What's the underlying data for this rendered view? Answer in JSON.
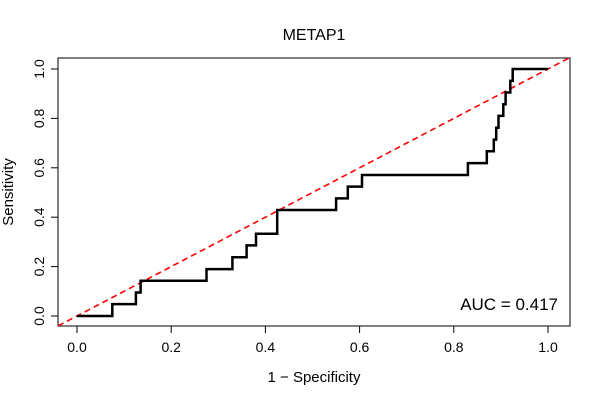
{
  "chart_data": {
    "type": "line",
    "title": "METAP1",
    "xlabel": "1 − Specificity",
    "ylabel": "Sensitivity",
    "xlim": [
      0,
      1
    ],
    "ylim": [
      0,
      1
    ],
    "x_ticks": [
      "0.0",
      "0.2",
      "0.4",
      "0.6",
      "0.8",
      "1.0"
    ],
    "y_ticks": [
      "0.0",
      "0.2",
      "0.4",
      "0.6",
      "0.8",
      "1.0"
    ],
    "annotation": "AUC = 0.417",
    "grid": false,
    "series": [
      {
        "color": "#000000",
        "x": [
          0.0,
          0.075,
          0.075,
          0.125,
          0.125,
          0.135,
          0.135,
          0.275,
          0.275,
          0.33,
          0.33,
          0.36,
          0.36,
          0.38,
          0.38,
          0.425,
          0.425,
          0.55,
          0.55,
          0.575,
          0.575,
          0.605,
          0.605,
          0.83,
          0.83,
          0.87,
          0.87,
          0.885,
          0.885,
          0.89,
          0.89,
          0.895,
          0.895,
          0.905,
          0.905,
          0.91,
          0.91,
          0.92,
          0.92,
          0.925,
          0.925,
          1.0
        ],
        "y": [
          0.0,
          0.0,
          0.048,
          0.048,
          0.095,
          0.095,
          0.143,
          0.143,
          0.19,
          0.19,
          0.238,
          0.238,
          0.286,
          0.286,
          0.333,
          0.333,
          0.429,
          0.429,
          0.476,
          0.476,
          0.524,
          0.524,
          0.571,
          0.571,
          0.619,
          0.619,
          0.667,
          0.667,
          0.714,
          0.714,
          0.762,
          0.762,
          0.81,
          0.81,
          0.857,
          0.857,
          0.905,
          0.905,
          0.952,
          0.952,
          1.0,
          1.0
        ]
      }
    ],
    "reference_line": {
      "x": [
        0,
        1
      ],
      "y": [
        0,
        1
      ],
      "color": "#ff0000",
      "style": "dashed"
    }
  }
}
